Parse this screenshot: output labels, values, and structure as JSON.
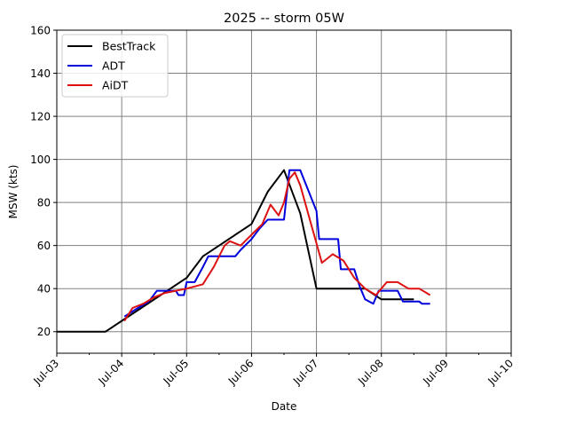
{
  "chart_data": {
    "type": "line",
    "title": "2025 -- storm 05W",
    "xlabel": "Date",
    "ylabel": "MSW (kts)",
    "x_ticks": [
      "Jul-03",
      "Jul-04",
      "Jul-05",
      "Jul-06",
      "Jul-07",
      "Jul-08",
      "Jul-09",
      "Jul-10"
    ],
    "xlim": [
      "Jul-03 00:00",
      "Jul-10 00:00"
    ],
    "ylim": [
      10,
      160
    ],
    "y_ticks": [
      20,
      40,
      60,
      80,
      100,
      120,
      140,
      160
    ],
    "grid": true,
    "legend_position": "top-left",
    "series": [
      {
        "name": "BestTrack",
        "color": "#000000",
        "points": [
          [
            "Jul-03 00:00",
            20
          ],
          [
            "Jul-03 18:00",
            20
          ],
          [
            "Jul-04 06:00",
            30
          ],
          [
            "Jul-05 00:00",
            45
          ],
          [
            "Jul-05 06:00",
            55
          ],
          [
            "Jul-06 00:00",
            70
          ],
          [
            "Jul-06 06:00",
            85
          ],
          [
            "Jul-06 12:00",
            95
          ],
          [
            "Jul-06 18:00",
            75
          ],
          [
            "Jul-07 00:00",
            40
          ],
          [
            "Jul-07 18:00",
            40
          ],
          [
            "Jul-08 00:00",
            35
          ],
          [
            "Jul-08 12:00",
            35
          ]
        ]
      },
      {
        "name": "ADT",
        "color": "#0000dd",
        "points": [
          [
            "Jul-04 01:00",
            27
          ],
          [
            "Jul-04 06:00",
            31
          ],
          [
            "Jul-04 10:00",
            34
          ],
          [
            "Jul-04 13:00",
            39
          ],
          [
            "Jul-04 20:00",
            39
          ],
          [
            "Jul-04 21:00",
            37
          ],
          [
            "Jul-04 23:00",
            37
          ],
          [
            "Jul-05 00:00",
            43
          ],
          [
            "Jul-05 03:00",
            43
          ],
          [
            "Jul-05 06:00",
            50
          ],
          [
            "Jul-05 08:00",
            55
          ],
          [
            "Jul-05 18:00",
            55
          ],
          [
            "Jul-05 20:00",
            58
          ],
          [
            "Jul-06 00:00",
            63
          ],
          [
            "Jul-06 03:00",
            68
          ],
          [
            "Jul-06 06:00",
            72
          ],
          [
            "Jul-06 12:00",
            72
          ],
          [
            "Jul-06 14:00",
            95
          ],
          [
            "Jul-06 18:00",
            95
          ],
          [
            "Jul-07 00:00",
            76
          ],
          [
            "Jul-07 01:00",
            63
          ],
          [
            "Jul-07 08:00",
            63
          ],
          [
            "Jul-07 09:00",
            49
          ],
          [
            "Jul-07 14:00",
            49
          ],
          [
            "Jul-07 16:00",
            41
          ],
          [
            "Jul-07 18:00",
            35
          ],
          [
            "Jul-07 21:00",
            33
          ],
          [
            "Jul-07 23:00",
            39
          ],
          [
            "Jul-08 06:00",
            39
          ],
          [
            "Jul-08 08:00",
            34
          ],
          [
            "Jul-08 14:00",
            34
          ],
          [
            "Jul-08 15:00",
            33
          ],
          [
            "Jul-08 18:00",
            33
          ]
        ]
      },
      {
        "name": "AiDT",
        "color": "#dd1111",
        "points": [
          [
            "Jul-04 01:00",
            25
          ],
          [
            "Jul-04 04:00",
            31
          ],
          [
            "Jul-04 08:00",
            33
          ],
          [
            "Jul-04 12:00",
            36
          ],
          [
            "Jul-04 16:00",
            38
          ],
          [
            "Jul-04 20:00",
            39
          ],
          [
            "Jul-05 00:00",
            40
          ],
          [
            "Jul-05 06:00",
            42
          ],
          [
            "Jul-05 10:00",
            50
          ],
          [
            "Jul-05 14:00",
            60
          ],
          [
            "Jul-05 16:00",
            62
          ],
          [
            "Jul-05 20:00",
            60
          ],
          [
            "Jul-06 00:00",
            65
          ],
          [
            "Jul-06 04:00",
            70
          ],
          [
            "Jul-06 07:00",
            79
          ],
          [
            "Jul-06 10:00",
            74
          ],
          [
            "Jul-06 12:00",
            80
          ],
          [
            "Jul-06 14:00",
            91
          ],
          [
            "Jul-06 16:00",
            94
          ],
          [
            "Jul-06 18:00",
            88
          ],
          [
            "Jul-06 22:00",
            70
          ],
          [
            "Jul-07 02:00",
            52
          ],
          [
            "Jul-07 06:00",
            56
          ],
          [
            "Jul-07 10:00",
            53
          ],
          [
            "Jul-07 14:00",
            45
          ],
          [
            "Jul-07 18:00",
            40
          ],
          [
            "Jul-07 22:00",
            37
          ],
          [
            "Jul-08 02:00",
            43
          ],
          [
            "Jul-08 06:00",
            43
          ],
          [
            "Jul-08 10:00",
            40
          ],
          [
            "Jul-08 14:00",
            40
          ],
          [
            "Jul-08 18:00",
            37
          ]
        ]
      }
    ]
  }
}
